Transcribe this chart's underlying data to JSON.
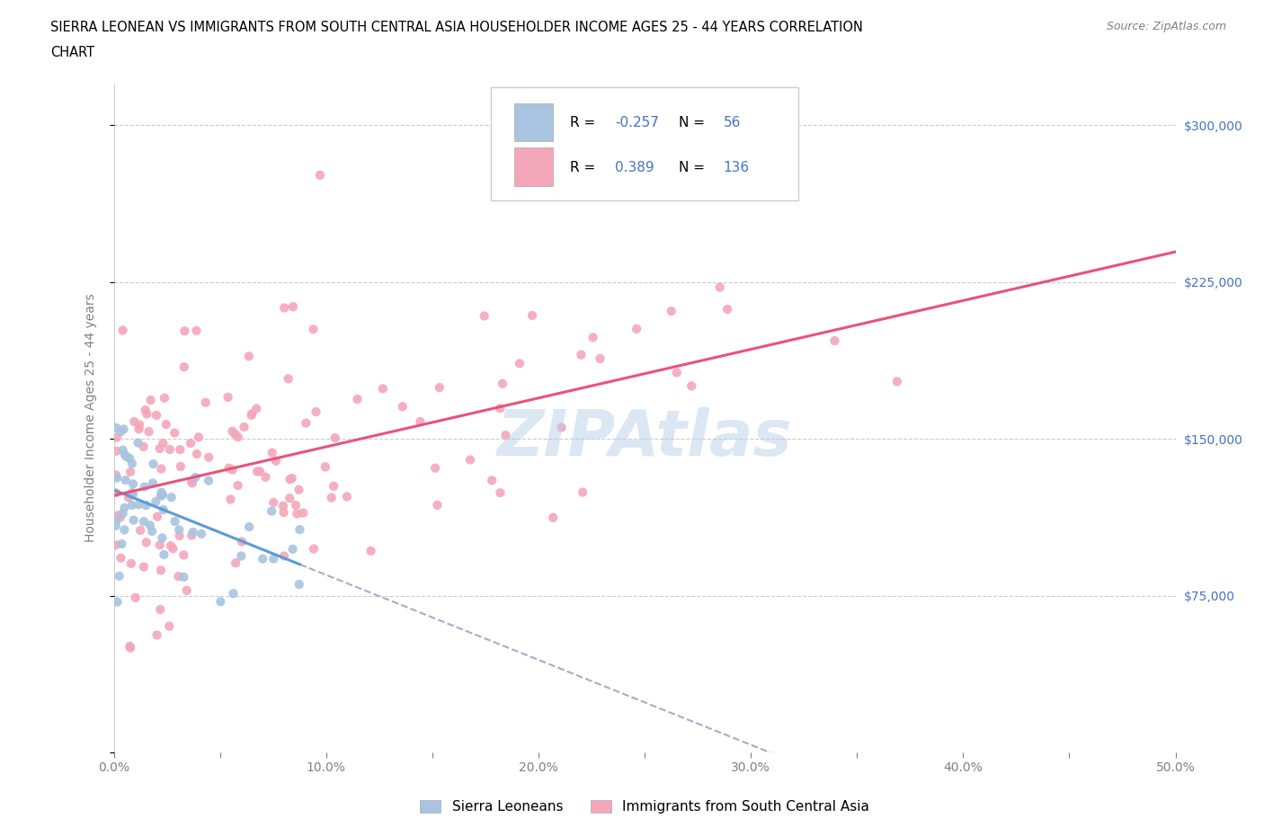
{
  "title_line1": "SIERRA LEONEAN VS IMMIGRANTS FROM SOUTH CENTRAL ASIA HOUSEHOLDER INCOME AGES 25 - 44 YEARS CORRELATION",
  "title_line2": "CHART",
  "source": "Source: ZipAtlas.com",
  "ylabel": "Householder Income Ages 25 - 44 years",
  "xlim": [
    0.0,
    0.5
  ],
  "ylim": [
    0,
    320000
  ],
  "xticks": [
    0.0,
    0.05,
    0.1,
    0.15,
    0.2,
    0.25,
    0.3,
    0.35,
    0.4,
    0.45,
    0.5
  ],
  "xticklabels": [
    "0.0%",
    "",
    "10.0%",
    "",
    "20.0%",
    "",
    "30.0%",
    "",
    "40.0%",
    "",
    "50.0%"
  ],
  "yticks": [
    0,
    75000,
    150000,
    225000,
    300000
  ],
  "yticklabels": [
    "",
    "$75,000",
    "$150,000",
    "$225,000",
    "$300,000"
  ],
  "blue_color": "#a8c4e0",
  "pink_color": "#f4a7b9",
  "blue_line_color": "#5b9bd5",
  "pink_line_color": "#e8537a",
  "blue_R": -0.257,
  "blue_N": 56,
  "pink_R": 0.389,
  "pink_N": 136,
  "watermark": "ZIPAtlas",
  "watermark_color": "#b8d0e8",
  "legend_label_blue": "Sierra Leoneans",
  "legend_label_pink": "Immigrants from South Central Asia",
  "background_color": "#ffffff",
  "grid_color": "#cccccc",
  "blue_R_text": "-0.257",
  "blue_N_text": "56",
  "pink_R_text": "0.389",
  "pink_N_text": "136",
  "accent_blue": "#4472c4"
}
